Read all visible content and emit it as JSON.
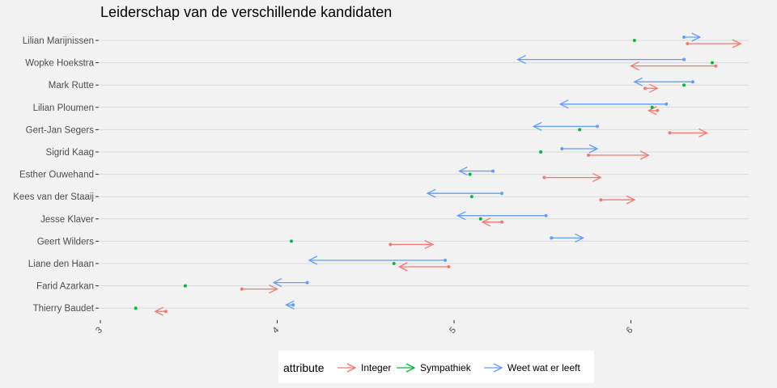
{
  "chart_data": {
    "type": "arrow",
    "title": "Leiderschap van de verschillende kandidaten",
    "xlabel": "",
    "ylabel": "",
    "xlim": [
      3,
      6.7
    ],
    "x_ticks": [
      3,
      4,
      5,
      6
    ],
    "x_tick_labels": [
      "3",
      "4",
      "5",
      "6"
    ],
    "categories": [
      "Lilian Marijnissen",
      "Wopke Hoekstra",
      "Mark Rutte",
      "Lilian Ploumen",
      "Gert-Jan Segers",
      "Sigrid Kaag",
      "Esther Ouwehand",
      "Kees van der Staaij",
      "Jesse Klaver",
      "Geert Wilders",
      "Liane den Haan",
      "Farid Azarkan",
      "Thierry Baudet"
    ],
    "legend": {
      "title": "attribute",
      "position": "bottom"
    },
    "grid": true,
    "series": [
      {
        "name": "Integer",
        "color": "#f8766d",
        "start": [
          6.32,
          6.48,
          6.08,
          6.15,
          6.22,
          5.76,
          5.51,
          5.83,
          5.27,
          4.64,
          4.97,
          3.8,
          3.37
        ],
        "end": [
          6.62,
          6.0,
          6.15,
          6.1,
          6.43,
          6.1,
          5.83,
          6.02,
          5.16,
          4.88,
          4.69,
          4.0,
          3.31
        ]
      },
      {
        "name": "Sympathiek",
        "color": "#00ba38",
        "start": [
          6.02,
          6.46,
          6.3,
          6.12,
          5.71,
          5.49,
          5.09,
          5.1,
          5.15,
          4.08,
          4.66,
          3.48,
          3.2
        ]
      },
      {
        "name": "Weet wat er leeft",
        "color": "#619cff",
        "start": [
          6.3,
          6.3,
          6.35,
          6.2,
          5.81,
          5.61,
          5.22,
          5.27,
          5.52,
          5.55,
          4.95,
          4.17,
          4.09
        ],
        "end": [
          6.39,
          5.36,
          6.02,
          5.6,
          5.45,
          5.81,
          5.03,
          4.85,
          5.02,
          5.73,
          4.18,
          3.98,
          4.05
        ]
      }
    ]
  }
}
